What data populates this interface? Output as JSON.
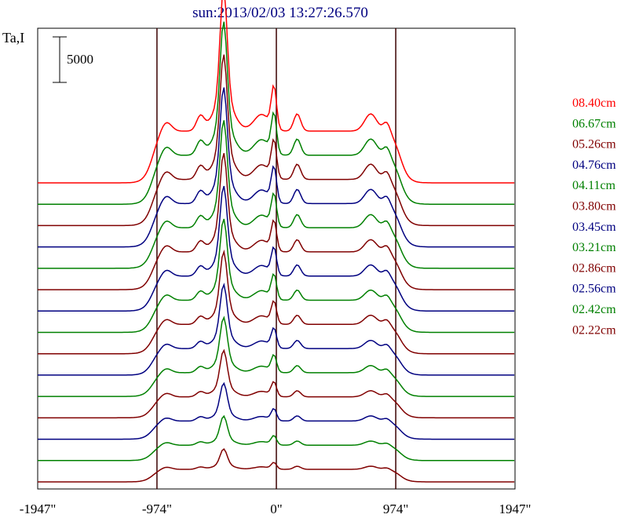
{
  "chart_data": {
    "type": "line",
    "title": "sun:2013/02/03 13:27:26.570",
    "ylabel": "Ta,I",
    "xlabel": "",
    "xlim": [
      -1947,
      1947
    ],
    "x_ticks": [
      {
        "value": -1947,
        "label": "-1947\""
      },
      {
        "value": -974,
        "label": "-974\""
      },
      {
        "value": 0,
        "label": "0\""
      },
      {
        "value": 974,
        "label": "974\""
      },
      {
        "value": 1947,
        "label": "1947\""
      }
    ],
    "vertical_lines": [
      -974,
      0,
      974
    ],
    "scale_bar": {
      "value": 5000,
      "label": "5000"
    },
    "grid": false,
    "legend_position": "right",
    "legend": [
      {
        "label": "08.40cm",
        "color": "#ff0000"
      },
      {
        "label": "06.67cm",
        "color": "#008000"
      },
      {
        "label": "05.26cm",
        "color": "#800000"
      },
      {
        "label": "04.76cm",
        "color": "#000080"
      },
      {
        "label": "04.11cm",
        "color": "#008000"
      },
      {
        "label": "03.80cm",
        "color": "#800000"
      },
      {
        "label": "03.45cm",
        "color": "#000080"
      },
      {
        "label": "03.21cm",
        "color": "#008000"
      },
      {
        "label": "02.86cm",
        "color": "#800000"
      },
      {
        "label": "02.56cm",
        "color": "#000080"
      },
      {
        "label": "02.42cm",
        "color": "#008000"
      },
      {
        "label": "02.22cm",
        "color": "#800000"
      }
    ],
    "curve_colors": [
      "#ff0000",
      "#008000",
      "#800000",
      "#000080",
      "#008000",
      "#800000",
      "#000080",
      "#008000",
      "#800000",
      "#000080",
      "#008000",
      "#800000",
      "#000080",
      "#008000",
      "#800000"
    ]
  }
}
